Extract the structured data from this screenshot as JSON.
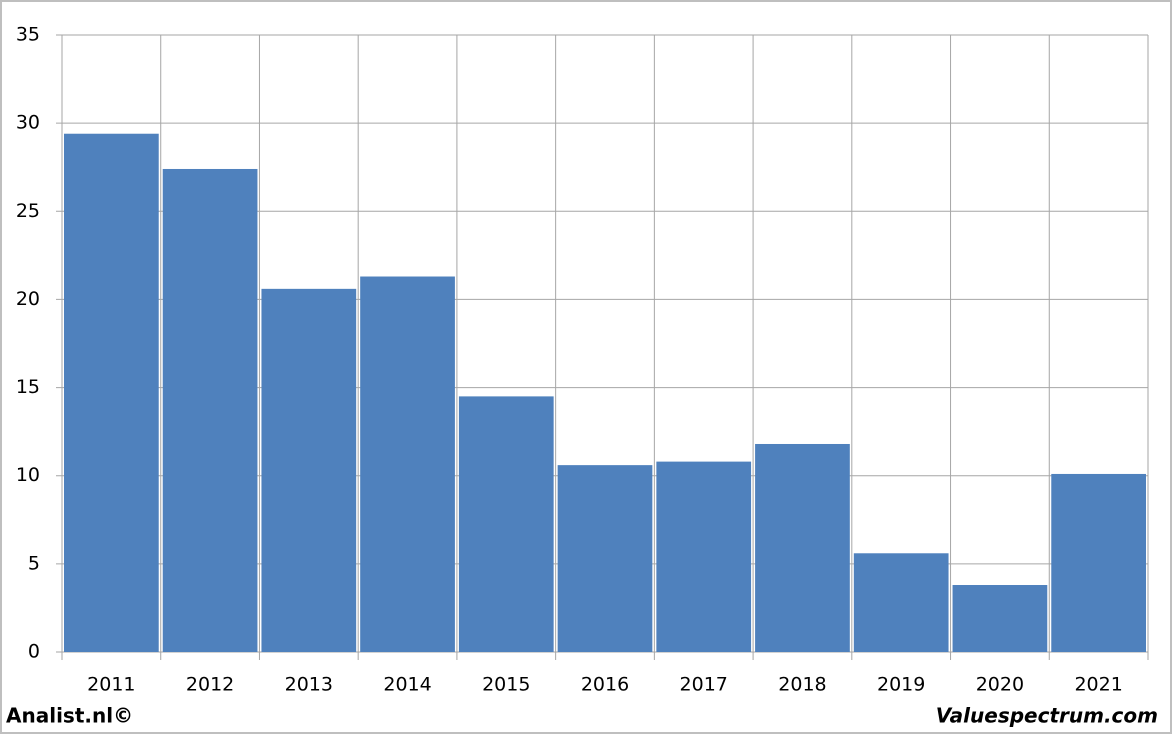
{
  "chart_data": {
    "type": "bar",
    "categories": [
      "2011",
      "2012",
      "2013",
      "2014",
      "2015",
      "2016",
      "2017",
      "2018",
      "2019",
      "2020",
      "2021"
    ],
    "values": [
      29.4,
      27.4,
      20.6,
      21.3,
      14.5,
      10.6,
      10.8,
      11.8,
      5.6,
      3.8,
      10.1
    ],
    "color": "#4f81bd",
    "ylim": [
      0,
      35
    ],
    "yticks": [
      0,
      5,
      10,
      15,
      20,
      25,
      30,
      35
    ],
    "grid": true,
    "footer_left": "Analist.nl©",
    "footer_right": "Valuespectrum.com"
  }
}
